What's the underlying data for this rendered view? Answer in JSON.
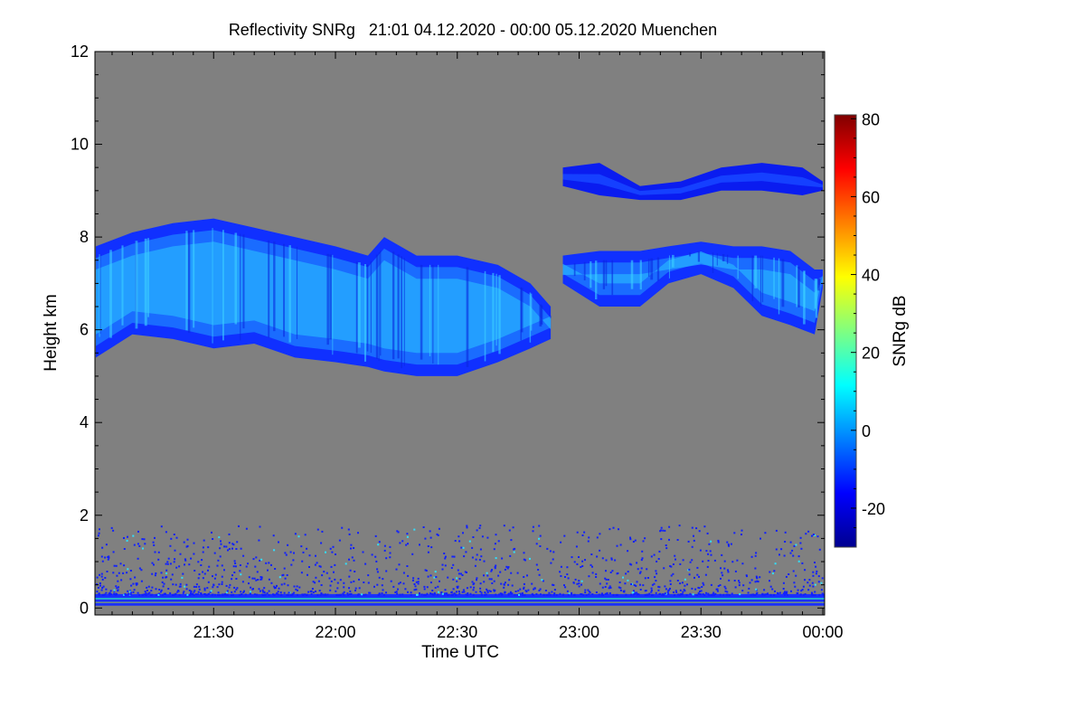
{
  "chart_data": {
    "type": "heatmap",
    "title": "Reflectivity SNRg   21:01 04.12.2020 - 00:00 05.12.2020 Muenchen",
    "xlabel": "Time UTC",
    "ylabel": "Height km",
    "x_units": "minutes after 21:00 UTC",
    "xlim": [
      1,
      180
    ],
    "ylim": [
      -0.15,
      12
    ],
    "x_ticks": [
      {
        "value": 30,
        "label": "21:30"
      },
      {
        "value": 60,
        "label": "22:00"
      },
      {
        "value": 90,
        "label": "22:30"
      },
      {
        "value": 120,
        "label": "23:00"
      },
      {
        "value": 150,
        "label": "23:30"
      },
      {
        "value": 180,
        "label": "00:00"
      }
    ],
    "y_ticks": [
      {
        "value": 0,
        "label": "0"
      },
      {
        "value": 2,
        "label": "2"
      },
      {
        "value": 4,
        "label": "4"
      },
      {
        "value": 6,
        "label": "6"
      },
      {
        "value": 8,
        "label": "8"
      },
      {
        "value": 10,
        "label": "10"
      },
      {
        "value": 12,
        "label": "12"
      }
    ],
    "background_color": "#808080",
    "colorbar": {
      "label": "SNRg dB",
      "range": [
        -30,
        81
      ],
      "ticks": [
        {
          "value": -20,
          "label": "-20"
        },
        {
          "value": 0,
          "label": "0"
        },
        {
          "value": 20,
          "label": "20"
        },
        {
          "value": 40,
          "label": "40"
        },
        {
          "value": 60,
          "label": "60"
        },
        {
          "value": 80,
          "label": "80"
        }
      ],
      "colormap": [
        "#00008f",
        "#0000ff",
        "#0080ff",
        "#00ffff",
        "#80ff80",
        "#ffff00",
        "#ff8000",
        "#ff0000",
        "#800000"
      ]
    },
    "cloud_layers": [
      {
        "name": "mid-level cloud 21:01-22:53",
        "typical_snr_db": [
          -20,
          12
        ],
        "profile": [
          [
            1,
            5.4,
            7.8
          ],
          [
            10,
            5.9,
            8.1
          ],
          [
            20,
            5.8,
            8.3
          ],
          [
            30,
            5.6,
            8.4
          ],
          [
            40,
            5.7,
            8.2
          ],
          [
            50,
            5.4,
            8.0
          ],
          [
            60,
            5.3,
            7.8
          ],
          [
            68,
            5.2,
            7.6
          ],
          [
            72,
            5.1,
            8.0
          ],
          [
            80,
            5.0,
            7.6
          ],
          [
            90,
            5.0,
            7.6
          ],
          [
            100,
            5.3,
            7.4
          ],
          [
            108,
            5.6,
            7.0
          ],
          [
            113,
            5.8,
            6.5
          ]
        ]
      },
      {
        "name": "mid-level cloud 22:56-00:00",
        "typical_snr_db": [
          -20,
          8
        ],
        "profile": [
          [
            116,
            7.0,
            7.6
          ],
          [
            125,
            6.5,
            7.7
          ],
          [
            135,
            6.5,
            7.7
          ],
          [
            142,
            7.0,
            7.8
          ],
          [
            150,
            7.2,
            7.9
          ],
          [
            158,
            6.9,
            7.8
          ],
          [
            165,
            6.3,
            7.8
          ],
          [
            172,
            6.1,
            7.7
          ],
          [
            178,
            5.9,
            7.3
          ],
          [
            180,
            6.9,
            7.3
          ]
        ]
      },
      {
        "name": "upper cloud 22:55-00:00",
        "typical_snr_db": [
          -22,
          -10
        ],
        "profile": [
          [
            116,
            9.1,
            9.5
          ],
          [
            125,
            8.9,
            9.6
          ],
          [
            135,
            8.8,
            9.1
          ],
          [
            145,
            8.8,
            9.2
          ],
          [
            155,
            9.0,
            9.5
          ],
          [
            165,
            9.0,
            9.6
          ],
          [
            175,
            8.9,
            9.5
          ],
          [
            180,
            9.0,
            9.2
          ]
        ]
      }
    ],
    "ground_clutter": {
      "height_km": [
        0,
        1.5
      ],
      "dense_below_km": 0.3
    }
  }
}
